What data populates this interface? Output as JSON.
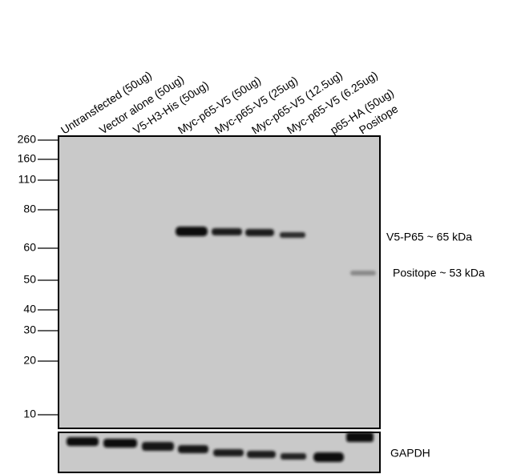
{
  "lanes": [
    "Untransfected (50ug)",
    "Vector alone (50ug)",
    "V5-H3-His (50ug)",
    "Myc-p65-V5 (50ug)",
    "Myc-p65-V5 (25ug)",
    "Myc-p65-V5 (12.5ug)",
    "Myc-p65-V5 (6.25ug)",
    "p65-HA (50ug)",
    "Positope"
  ],
  "markers": [
    260,
    160,
    110,
    80,
    60,
    50,
    40,
    30,
    20,
    10
  ],
  "annotations": {
    "v5_p65": "V5-P65 ~ 65 kDa",
    "positope": "Positope ~ 53 kDa",
    "loading": "GAPDH"
  }
}
